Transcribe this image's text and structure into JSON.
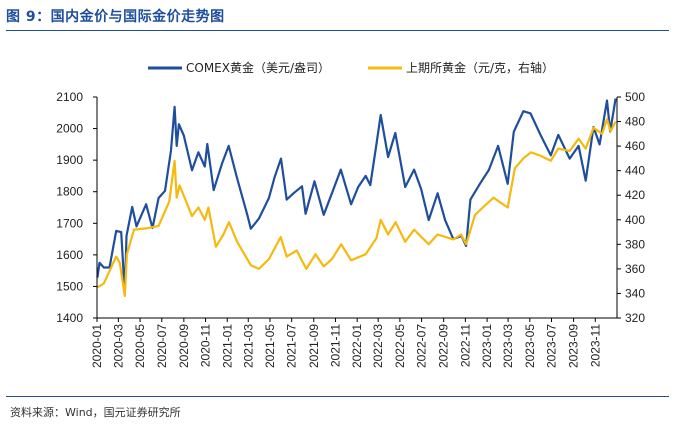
{
  "figure": {
    "title": "图 9：国内金价与国际金价走势图",
    "source": "资料来源：Wind，国元证券研究所"
  },
  "chart_data": {
    "type": "line",
    "title": "",
    "xlabel": "",
    "ylabel": "",
    "x_ticks": [
      "2020-01",
      "2020-03",
      "2020-05",
      "2020-07",
      "2020-09",
      "2020-11",
      "2021-01",
      "2021-03",
      "2021-05",
      "2021-07",
      "2021-09",
      "2021-11",
      "2022-01",
      "2022-03",
      "2022-05",
      "2022-07",
      "2022-09",
      "2022-11",
      "2023-01",
      "2023-03",
      "2023-05",
      "2023-07",
      "2023-09",
      "2023-11"
    ],
    "y_left": {
      "ticks": [
        1400,
        1500,
        1600,
        1700,
        1800,
        1900,
        2000,
        2100
      ],
      "range": [
        1400,
        2100
      ]
    },
    "y_right": {
      "ticks": [
        320,
        340,
        360,
        380,
        400,
        420,
        440,
        460,
        480,
        500
      ],
      "range": [
        320,
        500
      ]
    },
    "legend": "top",
    "grid": false,
    "series": [
      {
        "name": "COMEX黄金（美元/盎司）",
        "color": "#1f4e9c",
        "axis": "left",
        "points": [
          [
            "2020-01-02",
            1528
          ],
          [
            "2020-01-08",
            1575
          ],
          [
            "2020-01-20",
            1560
          ],
          [
            "2020-02-05",
            1560
          ],
          [
            "2020-02-24",
            1676
          ],
          [
            "2020-03-09",
            1672
          ],
          [
            "2020-03-19",
            1478
          ],
          [
            "2020-03-24",
            1660
          ],
          [
            "2020-04-09",
            1752
          ],
          [
            "2020-04-21",
            1690
          ],
          [
            "2020-05-18",
            1760
          ],
          [
            "2020-06-05",
            1685
          ],
          [
            "2020-06-22",
            1780
          ],
          [
            "2020-07-10",
            1803
          ],
          [
            "2020-07-27",
            1931
          ],
          [
            "2020-08-06",
            2069
          ],
          [
            "2020-08-12",
            1945
          ],
          [
            "2020-08-18",
            2014
          ],
          [
            "2020-09-01",
            1978
          ],
          [
            "2020-09-24",
            1868
          ],
          [
            "2020-10-12",
            1925
          ],
          [
            "2020-10-30",
            1880
          ],
          [
            "2020-11-06",
            1951
          ],
          [
            "2020-11-24",
            1805
          ],
          [
            "2020-12-17",
            1888
          ],
          [
            "2021-01-05",
            1945
          ],
          [
            "2021-01-28",
            1845
          ],
          [
            "2021-02-26",
            1728
          ],
          [
            "2021-03-08",
            1683
          ],
          [
            "2021-03-31",
            1715
          ],
          [
            "2021-04-28",
            1780
          ],
          [
            "2021-05-14",
            1846
          ],
          [
            "2021-06-01",
            1905
          ],
          [
            "2021-06-17",
            1775
          ],
          [
            "2021-07-06",
            1795
          ],
          [
            "2021-07-30",
            1817
          ],
          [
            "2021-08-09",
            1730
          ],
          [
            "2021-09-03",
            1833
          ],
          [
            "2021-09-29",
            1727
          ],
          [
            "2021-10-22",
            1795
          ],
          [
            "2021-11-16",
            1870
          ],
          [
            "2021-12-15",
            1760
          ],
          [
            "2022-01-04",
            1815
          ],
          [
            "2022-01-25",
            1850
          ],
          [
            "2022-02-07",
            1821
          ],
          [
            "2022-02-24",
            1950
          ],
          [
            "2022-03-08",
            2043
          ],
          [
            "2022-03-29",
            1910
          ],
          [
            "2022-04-18",
            1986
          ],
          [
            "2022-05-16",
            1815
          ],
          [
            "2022-06-10",
            1870
          ],
          [
            "2022-06-30",
            1808
          ],
          [
            "2022-07-21",
            1710
          ],
          [
            "2022-08-15",
            1795
          ],
          [
            "2022-09-05",
            1710
          ],
          [
            "2022-09-28",
            1650
          ],
          [
            "2022-10-21",
            1660
          ],
          [
            "2022-11-03",
            1628
          ],
          [
            "2022-11-15",
            1775
          ],
          [
            "2022-12-13",
            1827
          ],
          [
            "2023-01-06",
            1869
          ],
          [
            "2023-02-01",
            1945
          ],
          [
            "2023-02-28",
            1825
          ],
          [
            "2023-03-17",
            1990
          ],
          [
            "2023-04-13",
            2055
          ],
          [
            "2023-05-03",
            2048
          ],
          [
            "2023-05-31",
            1980
          ],
          [
            "2023-06-29",
            1915
          ],
          [
            "2023-07-20",
            1980
          ],
          [
            "2023-08-21",
            1905
          ],
          [
            "2023-09-15",
            1945
          ],
          [
            "2023-10-05",
            1835
          ],
          [
            "2023-10-27",
            2005
          ],
          [
            "2023-11-13",
            1950
          ],
          [
            "2023-12-04",
            2089
          ],
          [
            "2023-12-13",
            1990
          ],
          [
            "2023-12-28",
            2095
          ]
        ]
      },
      {
        "name": "上期所黄金（元/克，右轴）",
        "color": "#f5b90f",
        "axis": "right",
        "points": [
          [
            "2020-01-02",
            345
          ],
          [
            "2020-01-20",
            348
          ],
          [
            "2020-02-24",
            370
          ],
          [
            "2020-03-05",
            365
          ],
          [
            "2020-03-19",
            338
          ],
          [
            "2020-03-25",
            372
          ],
          [
            "2020-04-14",
            392
          ],
          [
            "2020-05-18",
            393
          ],
          [
            "2020-06-22",
            395
          ],
          [
            "2020-07-22",
            415
          ],
          [
            "2020-08-06",
            448
          ],
          [
            "2020-08-12",
            418
          ],
          [
            "2020-08-20",
            428
          ],
          [
            "2020-09-24",
            403
          ],
          [
            "2020-10-12",
            410
          ],
          [
            "2020-10-30",
            400
          ],
          [
            "2020-11-09",
            410
          ],
          [
            "2020-11-30",
            378
          ],
          [
            "2020-12-21",
            388
          ],
          [
            "2021-01-06",
            398
          ],
          [
            "2021-01-29",
            382
          ],
          [
            "2021-03-08",
            363
          ],
          [
            "2021-03-31",
            360
          ],
          [
            "2021-04-28",
            368
          ],
          [
            "2021-05-31",
            386
          ],
          [
            "2021-06-17",
            370
          ],
          [
            "2021-07-15",
            375
          ],
          [
            "2021-08-11",
            360
          ],
          [
            "2021-09-06",
            372
          ],
          [
            "2021-09-29",
            362
          ],
          [
            "2021-10-22",
            368
          ],
          [
            "2021-11-17",
            380
          ],
          [
            "2021-12-15",
            367
          ],
          [
            "2022-01-25",
            372
          ],
          [
            "2022-02-24",
            385
          ],
          [
            "2022-03-08",
            400
          ],
          [
            "2022-03-29",
            388
          ],
          [
            "2022-04-19",
            398
          ],
          [
            "2022-05-16",
            382
          ],
          [
            "2022-06-10",
            392
          ],
          [
            "2022-07-21",
            380
          ],
          [
            "2022-08-15",
            388
          ],
          [
            "2022-09-28",
            384
          ],
          [
            "2022-10-20",
            388
          ],
          [
            "2022-11-03",
            380
          ],
          [
            "2022-11-28",
            404
          ],
          [
            "2022-12-20",
            410
          ],
          [
            "2023-01-19",
            418
          ],
          [
            "2023-02-28",
            410
          ],
          [
            "2023-03-20",
            442
          ],
          [
            "2023-04-13",
            450
          ],
          [
            "2023-05-04",
            455
          ],
          [
            "2023-06-01",
            452
          ],
          [
            "2023-06-29",
            448
          ],
          [
            "2023-07-20",
            458
          ],
          [
            "2023-08-21",
            456
          ],
          [
            "2023-09-15",
            466
          ],
          [
            "2023-10-05",
            458
          ],
          [
            "2023-10-27",
            475
          ],
          [
            "2023-11-20",
            470
          ],
          [
            "2023-12-04",
            482
          ],
          [
            "2023-12-14",
            472
          ],
          [
            "2023-12-28",
            480
          ]
        ]
      }
    ]
  }
}
